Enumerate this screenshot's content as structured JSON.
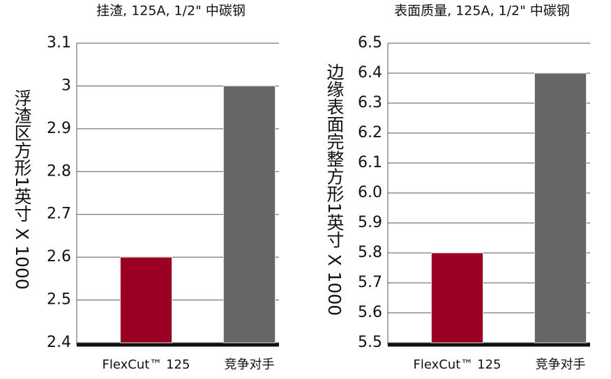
{
  "chart_data": [
    {
      "type": "bar",
      "title": "挂渣, 125A, 1/2\" 中碳钢",
      "y_label": "浮渣区方形1英寸 X 1000",
      "categories": [
        "FlexCut™ 125",
        "竞争对手"
      ],
      "values": [
        2.6,
        3.0
      ],
      "colors": [
        "#9b0022",
        "#666666"
      ],
      "ylim": [
        2.4,
        3.1
      ],
      "yticks": [
        2.4,
        2.5,
        2.6,
        2.7,
        2.8,
        2.9,
        3,
        3.1
      ],
      "grid": true
    },
    {
      "type": "bar",
      "title": "表面质量, 125A, 1/2\" 中碳钢",
      "y_label": "边缘表面完整方形1英寸 X 1000",
      "categories": [
        "FlexCut™ 125",
        "竞争对手"
      ],
      "values": [
        5.8,
        6.4
      ],
      "colors": [
        "#9b0022",
        "#666666"
      ],
      "ylim": [
        5.5,
        6.5
      ],
      "yticks": [
        5.5,
        5.6,
        5.7,
        5.8,
        5.9,
        {
          "value": 6,
          "label": "6.0"
        },
        6.1,
        6.2,
        6.3,
        6.4,
        6.5
      ],
      "grid": true
    }
  ]
}
